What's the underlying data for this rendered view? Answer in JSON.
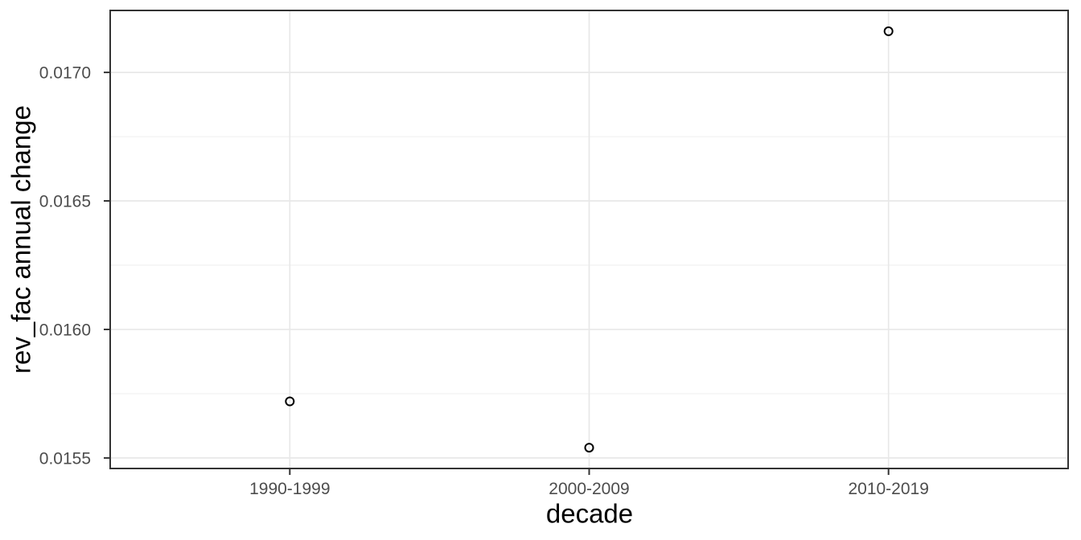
{
  "chart_data": {
    "type": "scatter",
    "title": "",
    "xlabel": "decade",
    "ylabel": "rev_fac annual change",
    "categories": [
      "1990-1999",
      "2000-2009",
      "2010-2019"
    ],
    "values": [
      0.01572,
      0.01554,
      0.01716
    ],
    "y_ticks": [
      0.0155,
      0.016,
      0.0165,
      0.017
    ],
    "y_tick_labels": [
      "0.0155",
      "0.0160",
      "0.0165",
      "0.0170"
    ],
    "y_minor_ticks": [
      0.01575,
      0.01625,
      0.01675
    ],
    "ylim": [
      0.015459,
      0.017241
    ],
    "grid": "major-and-minor",
    "legend_position": "none",
    "point_style": "open-circle",
    "colors": {
      "background": "#ffffff",
      "panel_background": "#ffffff",
      "panel_border": "#333333",
      "grid_major": "#e8e8e8",
      "grid_minor": "#f1f1f1",
      "tick_mark": "#333333",
      "tick_label": "#4d4d4d",
      "axis_title": "#000000",
      "point_stroke": "#000000"
    }
  }
}
